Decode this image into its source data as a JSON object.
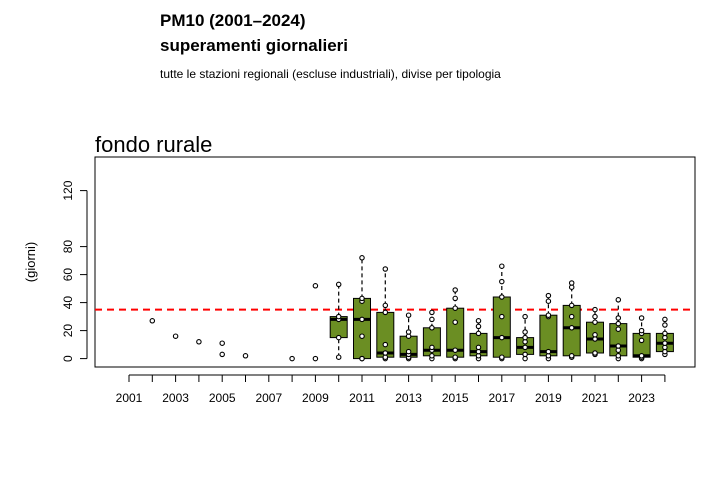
{
  "header": {
    "title": "PM10 (2001–2024)",
    "subtitle": "superamenti giornalieri",
    "caption": "tutte le stazioni regionali (escluse industriali), divise per tipologia"
  },
  "chart_data": {
    "type": "box",
    "panel_title": "fondo rurale",
    "ylabel": "(giorni)",
    "xlabel": "",
    "ylim": [
      -6,
      144
    ],
    "y_ticks": [
      0,
      20,
      40,
      60,
      80,
      120
    ],
    "x_ticks": [
      "2001",
      "2003",
      "2005",
      "2007",
      "2009",
      "2011",
      "2013",
      "2015",
      "2017",
      "2019",
      "2021",
      "2023"
    ],
    "threshold": 35,
    "colors": {
      "box_fill": "#6b8e23",
      "threshold_line": "#ff0000",
      "point_fill": "#ffffff"
    },
    "years": [
      {
        "year": 2002,
        "points": [
          27
        ]
      },
      {
        "year": 2003,
        "points": [
          16
        ]
      },
      {
        "year": 2004,
        "points": [
          12
        ]
      },
      {
        "year": 2005,
        "points": [
          3,
          11
        ]
      },
      {
        "year": 2006,
        "points": [
          2
        ]
      },
      {
        "year": 2008,
        "points": [
          0
        ]
      },
      {
        "year": 2009,
        "points": [
          0,
          52
        ]
      },
      {
        "year": 2010,
        "box": {
          "q1": 15,
          "median": 28,
          "q3": 30,
          "whisker_low": 1,
          "whisker_high": 53
        },
        "points": [
          1,
          15,
          28,
          30,
          53
        ]
      },
      {
        "year": 2011,
        "box": {
          "q1": 0,
          "median": 28,
          "q3": 43,
          "whisker_low": 0,
          "whisker_high": 72
        },
        "points": [
          0,
          0,
          16,
          28,
          41,
          43,
          72
        ]
      },
      {
        "year": 2012,
        "box": {
          "q1": 1,
          "median": 4,
          "q3": 33,
          "whisker_low": 0,
          "whisker_high": 64
        },
        "points": [
          0,
          1,
          4,
          10,
          33,
          38,
          64
        ]
      },
      {
        "year": 2013,
        "box": {
          "q1": 1,
          "median": 3,
          "q3": 16,
          "whisker_low": 0,
          "whisker_high": 31
        },
        "points": [
          0,
          1,
          3,
          5,
          16,
          19,
          31
        ]
      },
      {
        "year": 2014,
        "box": {
          "q1": 2,
          "median": 6,
          "q3": 22,
          "whisker_low": 0,
          "whisker_high": 33
        },
        "points": [
          0,
          2,
          6,
          8,
          22,
          28,
          33
        ]
      },
      {
        "year": 2015,
        "box": {
          "q1": 1,
          "median": 6,
          "q3": 36,
          "whisker_low": 0,
          "whisker_high": 49
        },
        "points": [
          0,
          1,
          6,
          26,
          36,
          43,
          49
        ]
      },
      {
        "year": 2016,
        "box": {
          "q1": 2,
          "median": 5,
          "q3": 18,
          "whisker_low": 0,
          "whisker_high": 27
        },
        "points": [
          0,
          2,
          5,
          8,
          18,
          23,
          27
        ]
      },
      {
        "year": 2017,
        "box": {
          "q1": 1,
          "median": 15,
          "q3": 44,
          "whisker_low": 0,
          "whisker_high": 66
        },
        "points": [
          0,
          1,
          15,
          30,
          44,
          55,
          66
        ]
      },
      {
        "year": 2018,
        "box": {
          "q1": 3,
          "median": 8,
          "q3": 15,
          "whisker_low": 0,
          "whisker_high": 30
        },
        "points": [
          0,
          3,
          8,
          12,
          15,
          19,
          30
        ]
      },
      {
        "year": 2019,
        "box": {
          "q1": 2,
          "median": 5,
          "q3": 31,
          "whisker_low": 0,
          "whisker_high": 45
        },
        "points": [
          0,
          2,
          5,
          30,
          31,
          41,
          45
        ]
      },
      {
        "year": 2020,
        "box": {
          "q1": 2,
          "median": 22,
          "q3": 38,
          "whisker_low": 1,
          "whisker_high": 54
        },
        "points": [
          1,
          2,
          22,
          30,
          38,
          51,
          54
        ]
      },
      {
        "year": 2021,
        "box": {
          "q1": 4,
          "median": 14,
          "q3": 26,
          "whisker_low": 3,
          "whisker_high": 35
        },
        "points": [
          3,
          4,
          14,
          17,
          26,
          30,
          35
        ]
      },
      {
        "year": 2022,
        "box": {
          "q1": 2,
          "median": 9,
          "q3": 25,
          "whisker_low": 0,
          "whisker_high": 42
        },
        "points": [
          0,
          2,
          6,
          9,
          21,
          25,
          29,
          42
        ]
      },
      {
        "year": 2023,
        "box": {
          "q1": 1,
          "median": 2,
          "q3": 18,
          "whisker_low": 0,
          "whisker_high": 29
        },
        "points": [
          0,
          1,
          2,
          13,
          18,
          20,
          29
        ]
      },
      {
        "year": 2024,
        "box": {
          "q1": 5,
          "median": 11,
          "q3": 18,
          "whisker_low": 3,
          "whisker_high": 28
        },
        "points": [
          3,
          5,
          8,
          11,
          15,
          18,
          24,
          28
        ]
      }
    ]
  }
}
